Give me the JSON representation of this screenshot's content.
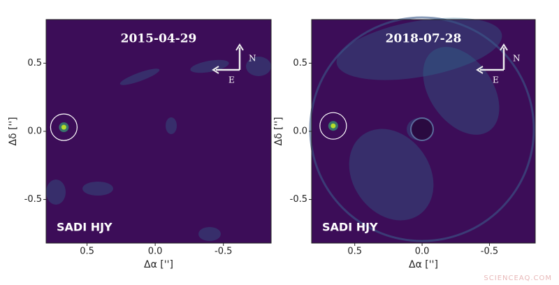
{
  "charts": [
    {
      "type": "image",
      "title": "2015-04-29",
      "annotation": "SADI HJY",
      "xlabel": "Δα ['']",
      "ylabel": "Δδ ['']",
      "compass": {
        "north": "N",
        "east": "E"
      },
      "xlim": [
        0.8,
        -0.85
      ],
      "ylim": [
        -0.82,
        0.82
      ],
      "xticks": [
        0.5,
        {
          "value": 0,
          "label": "0.0"
        },
        -0.5
      ],
      "yticks": [
        0.5,
        {
          "value": 0,
          "label": "0.0"
        },
        -0.5
      ],
      "source": {
        "x": 0.67,
        "y": 0.03
      }
    },
    {
      "type": "image",
      "title": "2018-07-28",
      "annotation": "SADI HJY",
      "xlabel": "Δα ['']",
      "ylabel": "Δδ ['']",
      "compass": {
        "north": "N",
        "east": "E"
      },
      "xlim": [
        0.82,
        -0.84
      ],
      "ylim": [
        -0.82,
        0.82
      ],
      "xticks": [
        0.5,
        {
          "value": 0,
          "label": "0.0"
        },
        -0.5
      ],
      "yticks": [
        0.5,
        {
          "value": 0,
          "label": "0.0"
        },
        -0.5
      ],
      "source": {
        "x": 0.66,
        "y": 0.04
      }
    }
  ],
  "watermark": "SCIENCEAQ.COM"
}
